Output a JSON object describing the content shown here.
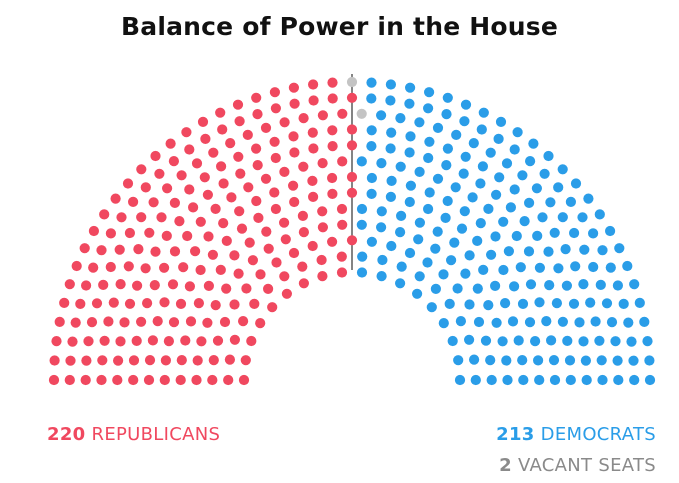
{
  "title": "Balance of Power in the House",
  "colors": {
    "republican": "#f0485f",
    "democrat": "#2a9de8",
    "vacant": "#c4c4c4",
    "divider": "#333333"
  },
  "legend": {
    "republicans": {
      "count": "220",
      "label": "REPUBLICANS"
    },
    "democrats": {
      "count": "213",
      "label": "DEMOCRATS"
    },
    "vacant": {
      "count": "2",
      "label": "VACANT SEATS"
    }
  },
  "chart_data": {
    "type": "parliament",
    "title": "Balance of Power in the House",
    "series": [
      {
        "name": "REPUBLICANS",
        "value": 220,
        "color": "#f0485f"
      },
      {
        "name": "VACANT SEATS",
        "value": 2,
        "color": "#c4c4c4"
      },
      {
        "name": "DEMOCRATS",
        "value": 213,
        "color": "#2a9de8"
      }
    ],
    "total": 435,
    "majority_divider": true
  }
}
